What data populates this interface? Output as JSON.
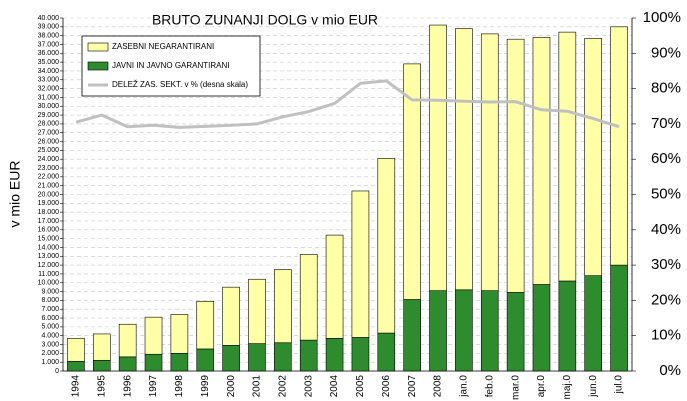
{
  "chart_data": {
    "type": "bar",
    "title": "BRUTO ZUNANJI DOLG v mio EUR",
    "ylabel": "v mio EUR",
    "stacked": true,
    "grid": true,
    "categories": [
      "1994",
      "1995",
      "1996",
      "1997",
      "1998",
      "1999",
      "2000",
      "2001",
      "2002",
      "2003",
      "2004",
      "2005",
      "2006",
      "2007",
      "2008",
      "jan.0",
      "feb.0",
      "mar.0",
      "apr.0",
      "maj.0",
      "jun.0",
      "jul.0"
    ],
    "series": [
      {
        "name": "ZASEBNI NEGARANTIRANI",
        "color": "#ffffa8",
        "values": [
          2600,
          3000,
          3700,
          4200,
          4400,
          5400,
          6600,
          7300,
          8300,
          9700,
          11700,
          16600,
          19800,
          26700,
          30100,
          29600,
          29100,
          28700,
          28000,
          28200,
          26900,
          27000
        ]
      },
      {
        "name": "JAVNI IN JAVNO GARANTIRANI",
        "color": "#2e8b2e",
        "values": [
          1100,
          1200,
          1600,
          1900,
          2000,
          2500,
          2900,
          3100,
          3200,
          3500,
          3700,
          3800,
          4300,
          8100,
          9100,
          9200,
          9100,
          8900,
          9800,
          10200,
          10800,
          12000
        ]
      },
      {
        "name": "DELEŽ ZAS. SEKT. v % (desna skala)",
        "color": "#c0c0c0",
        "type": "line",
        "axis": "y2",
        "values": [
          70.5,
          72.5,
          69.2,
          69.6,
          69,
          69.3,
          69.6,
          70,
          72,
          73.5,
          75.8,
          81.5,
          82.2,
          76.8,
          76.7,
          76.4,
          76.2,
          76.3,
          74,
          73.6,
          71.5,
          69.2
        ]
      }
    ],
    "ylim": [
      0,
      40000
    ],
    "yticks": [
      0,
      {
        "value": 1000,
        "label": "1.000"
      },
      {
        "value": 2000,
        "label": "2.000"
      },
      {
        "value": 3000,
        "label": "3.000"
      },
      {
        "value": 4000,
        "label": "4.000"
      },
      {
        "value": 5000,
        "label": "5.000"
      },
      {
        "value": 6000,
        "label": "6.000"
      },
      {
        "value": 7000,
        "label": "7.000"
      },
      {
        "value": 8000,
        "label": "8.000"
      },
      {
        "value": 9000,
        "label": "9.000"
      },
      {
        "value": 10000,
        "label": "10.000"
      },
      {
        "value": 11000,
        "label": "11.000"
      },
      {
        "value": 12000,
        "label": "12.000"
      },
      {
        "value": 13000,
        "label": "13.000"
      },
      {
        "value": 14000,
        "label": "14.000"
      },
      {
        "value": 15000,
        "label": "15.000"
      },
      {
        "value": 16000,
        "label": "16.000"
      },
      {
        "value": 17000,
        "label": "17.000"
      },
      {
        "value": 18000,
        "label": "18.000"
      },
      {
        "value": 19000,
        "label": "19.000"
      },
      {
        "value": 20000,
        "label": "20.000"
      },
      {
        "value": 21000,
        "label": "21.000"
      },
      {
        "value": 22000,
        "label": "22.000"
      },
      {
        "value": 23000,
        "label": "23.000"
      },
      {
        "value": 24000,
        "label": "24.000"
      },
      {
        "value": 25000,
        "label": "25.000"
      },
      {
        "value": 26000,
        "label": "26.000"
      },
      {
        "value": 27000,
        "label": "27.000"
      },
      {
        "value": 28000,
        "label": "28.000"
      },
      {
        "value": 29000,
        "label": "29.000"
      },
      {
        "value": 30000,
        "label": "30.000"
      },
      {
        "value": 31000,
        "label": "31.000"
      },
      {
        "value": 32000,
        "label": "32.000"
      },
      {
        "value": 33000,
        "label": "33.000"
      },
      {
        "value": 34000,
        "label": "34.000"
      },
      {
        "value": 35000,
        "label": "35.000"
      },
      {
        "value": 36000,
        "label": "36.000"
      },
      {
        "value": 37000,
        "label": "37.000"
      },
      {
        "value": 38000,
        "label": "38.000"
      },
      {
        "value": 39000,
        "label": "39.000"
      },
      {
        "value": 40000,
        "label": "40.000"
      }
    ],
    "y2lim": [
      0,
      100
    ],
    "y2ticks": [
      {
        "value": 0,
        "label": "0%"
      },
      {
        "value": 10,
        "label": "10%"
      },
      {
        "value": 20,
        "label": "20%"
      },
      {
        "value": 30,
        "label": "30%"
      },
      {
        "value": 40,
        "label": "40%"
      },
      {
        "value": 50,
        "label": "50%"
      },
      {
        "value": 60,
        "label": "60%"
      },
      {
        "value": 70,
        "label": "70%"
      },
      {
        "value": 80,
        "label": "80%"
      },
      {
        "value": 90,
        "label": "90%"
      },
      {
        "value": 100,
        "label": "100%"
      }
    ]
  }
}
